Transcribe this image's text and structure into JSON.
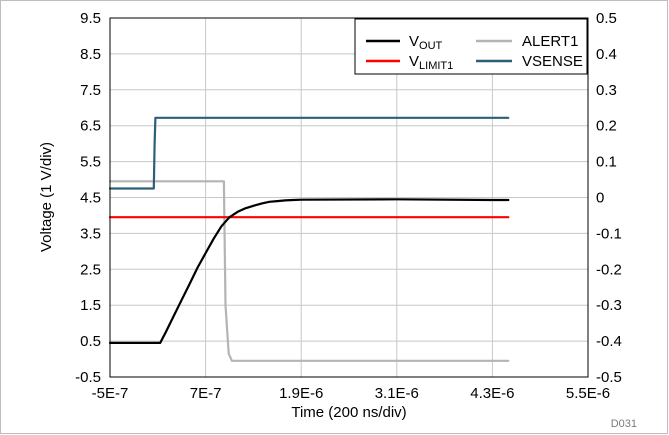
{
  "chart_data": {
    "type": "line",
    "xlabel": "Time (200 ns/div)",
    "ylabel": "Voltage (1 V/div)",
    "figure_id": "D031",
    "x_ticks": [
      "-5E-7",
      "7E-7",
      "1.9E-6",
      "3.1E-6",
      "4.3E-6",
      "5.5E-6"
    ],
    "y_left_ticks": [
      "9.5",
      "8.5",
      "7.5",
      "6.5",
      "5.5",
      "4.5",
      "3.5",
      "2.5",
      "1.5",
      "0.5",
      "-0.5"
    ],
    "y_right_ticks": [
      "0.5",
      "0.4",
      "0.3",
      "0.2",
      "0.1",
      "0",
      "-0.1",
      "-0.2",
      "-0.3",
      "-0.4",
      "-0.5"
    ],
    "xlim": [
      -5e-07,
      5.5e-06
    ],
    "ylim_left": [
      -0.5,
      9.5
    ],
    "ylim_right": [
      -0.5,
      0.5
    ],
    "grid": true,
    "legend_placement": "top-right",
    "series": [
      {
        "name": "VOUT",
        "legend_main": "V",
        "legend_sub": "OUT",
        "color": "#000000",
        "axis": "left",
        "x": [
          -5e-07,
          7e-08,
          1.3e-07,
          2e-07,
          3e-07,
          4e-07,
          5e-07,
          6e-07,
          7e-07,
          8e-07,
          9e-07,
          1e-06,
          1.1e-06,
          1.2e-06,
          1.3e-06,
          1.4e-06,
          1.5e-06,
          1.6e-06,
          1.7e-06,
          1.8e-06,
          1.9e-06,
          3.1e-06,
          4.3e-06,
          4.5e-06
        ],
        "y": [
          0.45,
          0.45,
          0.45,
          0.75,
          1.2,
          1.65,
          2.1,
          2.55,
          2.95,
          3.35,
          3.7,
          3.95,
          4.1,
          4.2,
          4.27,
          4.33,
          4.38,
          4.4,
          4.42,
          4.43,
          4.44,
          4.45,
          4.43,
          4.43
        ]
      },
      {
        "name": "ALERT1",
        "legend_main": "ALERT1",
        "color": "#b4b4b4",
        "axis": "left",
        "x": [
          -5e-07,
          9.3e-07,
          9.5e-07,
          9.9e-07,
          1.03e-06,
          1.15e-06,
          2.5e-06,
          4.5e-06
        ],
        "y": [
          4.95,
          4.95,
          1.5,
          0.15,
          -0.05,
          -0.05,
          -0.05,
          -0.05
        ]
      },
      {
        "name": "VLIMIT1",
        "legend_main": "V",
        "legend_sub": "LIMIT1",
        "color": "#ff0000",
        "axis": "left",
        "x": [
          -5e-07,
          4.5e-06
        ],
        "y": [
          3.95,
          3.95
        ]
      },
      {
        "name": "VSENSE",
        "legend_main": "VSENSE",
        "color": "#2c5f78",
        "axis": "left",
        "x": [
          -5e-07,
          5e-08,
          6e-08,
          7e-08,
          4.5e-06
        ],
        "y": [
          4.75,
          4.75,
          6.0,
          6.72,
          6.72
        ]
      }
    ]
  }
}
